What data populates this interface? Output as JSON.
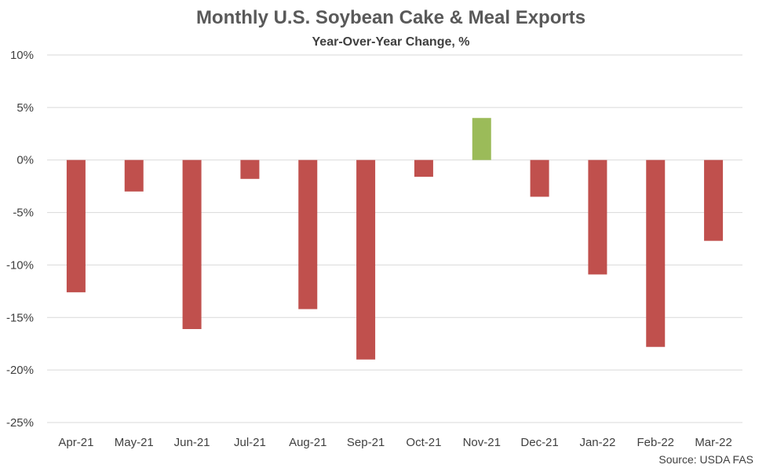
{
  "chart_data": {
    "type": "bar",
    "title": "Monthly U.S. Soybean Cake & Meal Exports",
    "subtitle": "Year-Over-Year Change, %",
    "categories": [
      "Apr-21",
      "May-21",
      "Jun-21",
      "Jul-21",
      "Aug-21",
      "Sep-21",
      "Oct-21",
      "Nov-21",
      "Dec-21",
      "Jan-22",
      "Feb-22",
      "Mar-22"
    ],
    "values": [
      -12.6,
      -3.0,
      -16.1,
      -1.8,
      -14.2,
      -19.0,
      -1.6,
      4.0,
      -3.5,
      -10.9,
      -17.8,
      -7.7
    ],
    "ylim": [
      -25,
      10
    ],
    "yticks": [
      10,
      5,
      0,
      -5,
      -10,
      -15,
      -20,
      -25
    ],
    "ytick_labels": [
      "10%",
      "5%",
      "0%",
      "-5%",
      "-10%",
      "-15%",
      "-20%",
      "-25%"
    ],
    "grid": true,
    "colors": {
      "negative": "#c0504d",
      "positive": "#9bbb59",
      "grid": "#d9d9d9",
      "text": "#404040"
    },
    "source": "Source: USDA FAS"
  }
}
